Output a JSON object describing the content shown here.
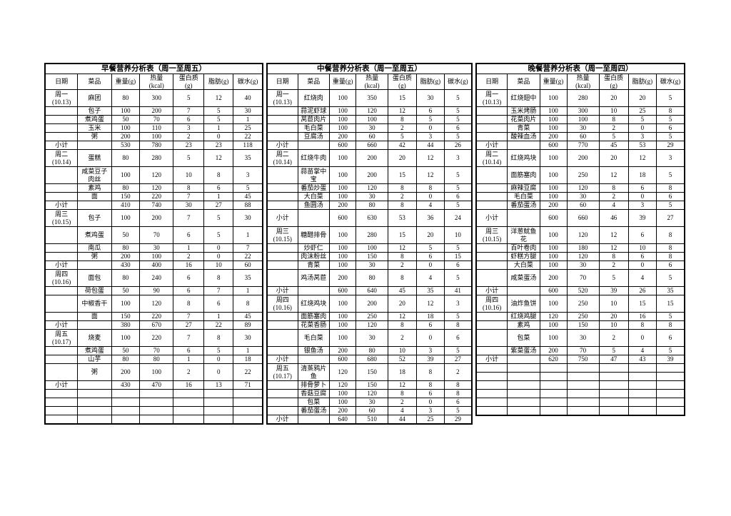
{
  "document": {
    "background": "#ffffff",
    "border_color": "#000000",
    "cell_names": [
      "date-cell",
      "dish-cell",
      "weight-cell",
      "calories-cell",
      "protein-cell",
      "fat-cell",
      "carbs-cell"
    ]
  },
  "tables": [
    {
      "id": "breakfast",
      "title": "早餐营养分析表（周一至周五）",
      "headers": [
        "日期",
        "菜品",
        "重量(g)",
        "热量\n(kcal)",
        "蛋白质\n(g)",
        "脂肪(g)",
        "碳水(g)"
      ],
      "rows": [
        {
          "date": "周一\n(10.13)",
          "dish": "麻团",
          "values": [
            "80",
            "300",
            "5",
            "12",
            "40"
          ],
          "tall": true
        },
        {
          "date": "",
          "dish": "包子",
          "values": [
            "100",
            "200",
            "7",
            "5",
            "30"
          ]
        },
        {
          "date": "",
          "dish": "煮鸡蛋",
          "values": [
            "50",
            "70",
            "6",
            "5",
            "1"
          ]
        },
        {
          "date": "",
          "dish": "玉米",
          "values": [
            "100",
            "110",
            "3",
            "1",
            "25"
          ]
        },
        {
          "date": "",
          "dish": "粥",
          "values": [
            "200",
            "100",
            "2",
            "0",
            "22"
          ]
        },
        {
          "date": "小计",
          "dish": "",
          "values": [
            "530",
            "780",
            "23",
            "23",
            "118"
          ],
          "subtotal": true
        },
        {
          "date": "周二\n(10.14)",
          "dish": "蛋糕",
          "values": [
            "80",
            "280",
            "5",
            "12",
            "35"
          ],
          "tall": true
        },
        {
          "date": "",
          "dish": "咸菜豆子肉丝",
          "values": [
            "100",
            "120",
            "10",
            "8",
            "3"
          ],
          "tall": true
        },
        {
          "date": "",
          "dish": "素鸡",
          "values": [
            "80",
            "120",
            "8",
            "6",
            "5"
          ]
        },
        {
          "date": "",
          "dish": "面",
          "values": [
            "150",
            "220",
            "7",
            "1",
            "45"
          ]
        },
        {
          "date": "小计",
          "dish": "",
          "values": [
            "410",
            "740",
            "30",
            "27",
            "88"
          ],
          "subtotal": true
        },
        {
          "date": "周三\n(10.15)",
          "dish": "包子",
          "values": [
            "100",
            "200",
            "7",
            "5",
            "30"
          ],
          "tall": true
        },
        {
          "date": "",
          "dish": "煮鸡蛋",
          "values": [
            "50",
            "70",
            "6",
            "5",
            "1"
          ],
          "tall": true
        },
        {
          "date": "",
          "dish": "南瓜",
          "values": [
            "80",
            "30",
            "1",
            "0",
            "7"
          ]
        },
        {
          "date": "",
          "dish": "粥",
          "values": [
            "200",
            "100",
            "2",
            "0",
            "22"
          ]
        },
        {
          "date": "小计",
          "dish": "",
          "values": [
            "430",
            "400",
            "16",
            "10",
            "60"
          ],
          "subtotal": true
        },
        {
          "date": "周四\n(10.16)",
          "dish": "面包",
          "values": [
            "80",
            "240",
            "6",
            "8",
            "35"
          ],
          "tall": true
        },
        {
          "date": "",
          "dish": "荷包蛋",
          "values": [
            "50",
            "90",
            "6",
            "7",
            "1"
          ]
        },
        {
          "date": "",
          "dish": "中椒香干",
          "values": [
            "100",
            "120",
            "8",
            "6",
            "8"
          ],
          "tall": true
        },
        {
          "date": "",
          "dish": "面",
          "values": [
            "150",
            "220",
            "7",
            "1",
            "45"
          ]
        },
        {
          "date": "小计",
          "dish": "",
          "values": [
            "380",
            "670",
            "27",
            "22",
            "89"
          ],
          "subtotal": true
        },
        {
          "date": "周五\n(10.17)",
          "dish": "烧麦",
          "values": [
            "100",
            "220",
            "7",
            "8",
            "30"
          ],
          "tall": true
        },
        {
          "date": "",
          "dish": "煮鸡蛋",
          "values": [
            "50",
            "70",
            "6",
            "5",
            "1"
          ]
        },
        {
          "date": "",
          "dish": "山芋",
          "values": [
            "80",
            "80",
            "1",
            "0",
            "18"
          ]
        },
        {
          "date": "",
          "dish": "粥",
          "values": [
            "200",
            "100",
            "2",
            "0",
            "22"
          ],
          "tall": true
        },
        {
          "date": "小计",
          "dish": "",
          "values": [
            "430",
            "470",
            "16",
            "13",
            "71"
          ],
          "subtotal": true
        },
        {
          "date": "",
          "dish": "",
          "values": [
            "",
            "",
            "",
            "",
            ""
          ],
          "empty": true
        },
        {
          "date": "",
          "dish": "",
          "values": [
            "",
            "",
            "",
            "",
            ""
          ],
          "empty": true
        },
        {
          "date": "",
          "dish": "",
          "values": [
            "",
            "",
            "",
            "",
            ""
          ],
          "empty": true
        },
        {
          "date": "",
          "dish": "",
          "values": [
            "",
            "",
            "",
            "",
            ""
          ],
          "empty": true
        }
      ]
    },
    {
      "id": "lunch",
      "title": "中餐营养分析表（周一至周五）",
      "headers": [
        "日期",
        "菜品",
        "重量(g)",
        "热量\n(kcal)",
        "蛋白质\n(g)",
        "脂肪(g)",
        "碳水(g)"
      ],
      "rows": [
        {
          "date": "周一\n(10.13)",
          "dish": "红烧肉",
          "values": [
            "100",
            "350",
            "15",
            "30",
            "5"
          ],
          "tall": true
        },
        {
          "date": "",
          "dish": "蒜泥虾球",
          "values": [
            "100",
            "120",
            "12",
            "6",
            "5"
          ]
        },
        {
          "date": "",
          "dish": "莴苣肉片",
          "values": [
            "100",
            "100",
            "8",
            "5",
            "5"
          ]
        },
        {
          "date": "",
          "dish": "毛白菜",
          "values": [
            "100",
            "30",
            "2",
            "0",
            "6"
          ]
        },
        {
          "date": "",
          "dish": "豆腐汤",
          "values": [
            "200",
            "60",
            "5",
            "3",
            "5"
          ]
        },
        {
          "date": "小计",
          "dish": "",
          "values": [
            "600",
            "660",
            "42",
            "44",
            "26"
          ],
          "subtotal": true
        },
        {
          "date": "周二\n(10.14)",
          "dish": "红烧牛肉",
          "values": [
            "100",
            "200",
            "20",
            "12",
            "3"
          ],
          "tall": true
        },
        {
          "date": "",
          "dish": "蒜苗掌中宝",
          "values": [
            "100",
            "200",
            "15",
            "12",
            "5"
          ],
          "tall": true
        },
        {
          "date": "",
          "dish": "番茄炒蛋",
          "values": [
            "100",
            "120",
            "8",
            "8",
            "5"
          ]
        },
        {
          "date": "",
          "dish": "大白菜",
          "values": [
            "100",
            "30",
            "2",
            "0",
            "6"
          ]
        },
        {
          "date": "",
          "dish": "鱼圆汤",
          "values": [
            "200",
            "80",
            "8",
            "4",
            "5"
          ]
        },
        {
          "date": "小计",
          "dish": "",
          "values": [
            "600",
            "630",
            "53",
            "36",
            "24"
          ],
          "subtotal": true,
          "tall": true
        },
        {
          "date": "周三\n(10.15)",
          "dish": "糖醋排骨",
          "values": [
            "100",
            "280",
            "15",
            "20",
            "10"
          ],
          "tall": true
        },
        {
          "date": "",
          "dish": "炒虾仁",
          "values": [
            "100",
            "100",
            "12",
            "5",
            "5"
          ]
        },
        {
          "date": "",
          "dish": "肉沫粉丝",
          "values": [
            "100",
            "150",
            "8",
            "6",
            "15"
          ]
        },
        {
          "date": "",
          "dish": "青菜",
          "values": [
            "100",
            "30",
            "2",
            "0",
            "6"
          ]
        },
        {
          "date": "",
          "dish": "鸡汤莴苣",
          "values": [
            "200",
            "80",
            "8",
            "4",
            "5"
          ],
          "tall": true
        },
        {
          "date": "小计",
          "dish": "",
          "values": [
            "600",
            "640",
            "45",
            "35",
            "41"
          ],
          "subtotal": true
        },
        {
          "date": "周四\n(10.16)",
          "dish": "红烧鸡块",
          "values": [
            "100",
            "200",
            "20",
            "12",
            "3"
          ],
          "tall": true
        },
        {
          "date": "",
          "dish": "面筋塞肉",
          "values": [
            "100",
            "250",
            "12",
            "18",
            "5"
          ]
        },
        {
          "date": "",
          "dish": "花菜香肠",
          "values": [
            "100",
            "120",
            "8",
            "6",
            "8"
          ]
        },
        {
          "date": "",
          "dish": "毛白菜",
          "values": [
            "100",
            "30",
            "2",
            "0",
            "6"
          ],
          "tall": true
        },
        {
          "date": "",
          "dish": "银鱼汤",
          "values": [
            "200",
            "80",
            "10",
            "3",
            "5"
          ]
        },
        {
          "date": "小计",
          "dish": "",
          "values": [
            "600",
            "680",
            "52",
            "39",
            "27"
          ],
          "subtotal": true
        },
        {
          "date": "周五\n(10.17)",
          "dish": "清蒸鸦片鱼",
          "values": [
            "120",
            "150",
            "18",
            "8",
            "2"
          ],
          "tall": true
        },
        {
          "date": "",
          "dish": "排骨萝卜",
          "values": [
            "120",
            "150",
            "12",
            "8",
            "8"
          ]
        },
        {
          "date": "",
          "dish": "香菇豆腐",
          "values": [
            "100",
            "120",
            "8",
            "6",
            "8"
          ]
        },
        {
          "date": "",
          "dish": "包菜",
          "values": [
            "100",
            "30",
            "2",
            "0",
            "6"
          ]
        },
        {
          "date": "",
          "dish": "番茄蛋汤",
          "values": [
            "200",
            "60",
            "4",
            "3",
            "5"
          ]
        },
        {
          "date": "小计",
          "dish": "",
          "values": [
            "640",
            "510",
            "44",
            "25",
            "29"
          ],
          "subtotal": true
        }
      ]
    },
    {
      "id": "dinner",
      "title": "晚餐营养分析表（周一至周四）",
      "headers": [
        "日期",
        "菜品",
        "重量(g)",
        "热量\n(kcal)",
        "蛋白质\n(g)",
        "脂肪(g)",
        "碳水(g)"
      ],
      "rows": [
        {
          "date": "周一\n(10.13)",
          "dish": "红烧翅中",
          "values": [
            "100",
            "280",
            "20",
            "20",
            "5"
          ],
          "tall": true
        },
        {
          "date": "",
          "dish": "玉米烤肠",
          "values": [
            "100",
            "300",
            "10",
            "25",
            "8"
          ]
        },
        {
          "date": "",
          "dish": "花菜肉片",
          "values": [
            "100",
            "100",
            "8",
            "5",
            "5"
          ]
        },
        {
          "date": "",
          "dish": "青菜",
          "values": [
            "100",
            "30",
            "2",
            "0",
            "6"
          ]
        },
        {
          "date": "",
          "dish": "酸辣血汤",
          "values": [
            "200",
            "60",
            "5",
            "3",
            "5"
          ]
        },
        {
          "date": "小计",
          "dish": "",
          "values": [
            "600",
            "770",
            "45",
            "53",
            "29"
          ],
          "subtotal": true
        },
        {
          "date": "周二\n(10.14)",
          "dish": "红烧鸡块",
          "values": [
            "100",
            "200",
            "20",
            "12",
            "3"
          ],
          "tall": true
        },
        {
          "date": "",
          "dish": "面筋塞肉",
          "values": [
            "100",
            "250",
            "12",
            "18",
            "5"
          ],
          "tall": true
        },
        {
          "date": "",
          "dish": "麻辣豆腐",
          "values": [
            "100",
            "120",
            "8",
            "6",
            "8"
          ]
        },
        {
          "date": "",
          "dish": "毛白菜",
          "values": [
            "100",
            "30",
            "2",
            "0",
            "6"
          ]
        },
        {
          "date": "",
          "dish": "番茄蛋汤",
          "values": [
            "200",
            "60",
            "4",
            "3",
            "5"
          ]
        },
        {
          "date": "小计",
          "dish": "",
          "values": [
            "600",
            "660",
            "46",
            "39",
            "27"
          ],
          "subtotal": true,
          "tall": true
        },
        {
          "date": "周三\n(10.15)",
          "dish": "洋葱鱿鱼花",
          "values": [
            "100",
            "120",
            "12",
            "6",
            "8"
          ],
          "tall": true
        },
        {
          "date": "",
          "dish": "百叶卷肉",
          "values": [
            "100",
            "180",
            "12",
            "10",
            "8"
          ]
        },
        {
          "date": "",
          "dish": "虾糕方腿",
          "values": [
            "100",
            "120",
            "8",
            "6",
            "8"
          ]
        },
        {
          "date": "",
          "dish": "大白菜",
          "values": [
            "100",
            "30",
            "2",
            "0",
            "6"
          ]
        },
        {
          "date": "",
          "dish": "咸菜蛋汤",
          "values": [
            "200",
            "70",
            "5",
            "4",
            "5"
          ],
          "tall": true
        },
        {
          "date": "小计",
          "dish": "",
          "values": [
            "600",
            "520",
            "39",
            "26",
            "35"
          ],
          "subtotal": true
        },
        {
          "date": "周四\n(10.16)",
          "dish": "油炸鱼饼",
          "values": [
            "100",
            "250",
            "10",
            "15",
            "15"
          ],
          "tall": true
        },
        {
          "date": "",
          "dish": "红烧鸡腿",
          "values": [
            "120",
            "250",
            "20",
            "16",
            "5"
          ]
        },
        {
          "date": "",
          "dish": "素鸡",
          "values": [
            "100",
            "150",
            "10",
            "8",
            "8"
          ]
        },
        {
          "date": "",
          "dish": "包菜",
          "values": [
            "100",
            "30",
            "2",
            "0",
            "6"
          ],
          "tall": true
        },
        {
          "date": "",
          "dish": "紫菜蛋汤",
          "values": [
            "200",
            "70",
            "5",
            "4",
            "5"
          ]
        },
        {
          "date": "小计",
          "dish": "",
          "values": [
            "620",
            "750",
            "47",
            "43",
            "39"
          ],
          "subtotal": true
        },
        {
          "date": "",
          "dish": "",
          "values": [
            "",
            "",
            "",
            "",
            ""
          ],
          "empty": true
        },
        {
          "date": "",
          "dish": "",
          "values": [
            "",
            "",
            "",
            "",
            ""
          ],
          "empty": true
        },
        {
          "date": "",
          "dish": "",
          "values": [
            "",
            "",
            "",
            "",
            ""
          ],
          "empty": true
        },
        {
          "date": "",
          "dish": "",
          "values": [
            "",
            "",
            "",
            "",
            ""
          ],
          "empty": true
        },
        {
          "date": "",
          "dish": "",
          "values": [
            "",
            "",
            "",
            "",
            ""
          ],
          "empty": true
        },
        {
          "date": "",
          "dish": "",
          "values": [
            "",
            "",
            "",
            "",
            ""
          ],
          "empty": true
        }
      ]
    }
  ]
}
